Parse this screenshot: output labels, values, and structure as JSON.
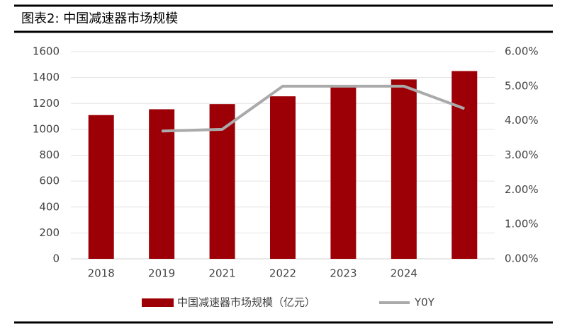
{
  "chart_data": {
    "type": "bar",
    "title": "图表2: 中国减速器市场规模",
    "categories": [
      "2018",
      "2019",
      "2021",
      "2022",
      "2023",
      "2024",
      null
    ],
    "series": [
      {
        "name": "中国减速器市场规模（亿元）",
        "type": "bar",
        "color": "#9c0006",
        "values": [
          1110,
          1155,
          1195,
          1255,
          1325,
          1385,
          1450
        ]
      },
      {
        "name": "Y0Y",
        "type": "line",
        "axis": "y2",
        "color": "#aaaaaa",
        "values": [
          null,
          3.7,
          3.75,
          5.0,
          5.0,
          5.0,
          4.35
        ]
      }
    ],
    "ylim": [
      0,
      1600
    ],
    "yticks": [
      0,
      200,
      400,
      600,
      800,
      1000,
      1200,
      1400,
      1600
    ],
    "y2lim": [
      0,
      6
    ],
    "y2ticks": [
      {
        "value": 0,
        "label": "0.00%"
      },
      {
        "value": 1,
        "label": "1.00%"
      },
      {
        "value": 2,
        "label": "2.00%"
      },
      {
        "value": 3,
        "label": "3.00%"
      },
      {
        "value": 4,
        "label": "4.00%"
      },
      {
        "value": 5,
        "label": "5.00%"
      },
      {
        "value": 6,
        "label": "6.00%"
      }
    ],
    "grid": true
  }
}
